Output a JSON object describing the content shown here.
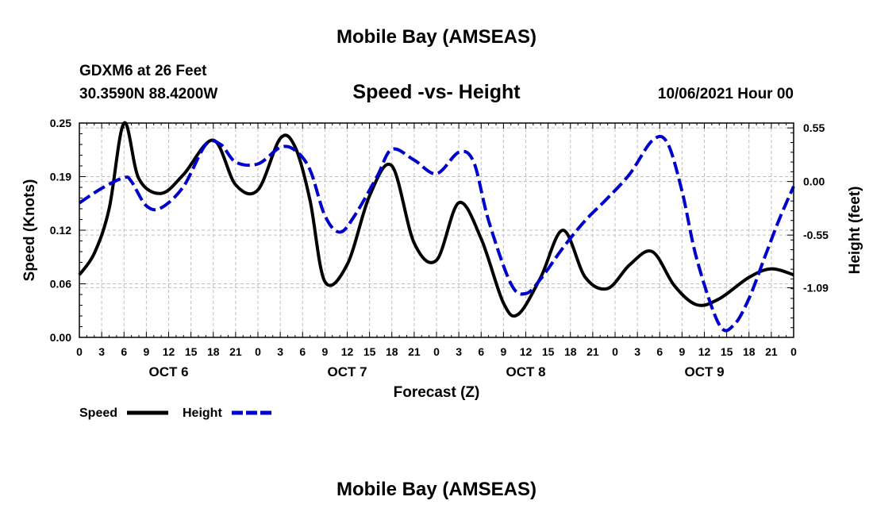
{
  "header": {
    "title_top": "Mobile Bay (AMSEAS)",
    "title_bottom": "Mobile Bay (AMSEAS)",
    "station": "GDXM6 at 26 Feet",
    "location": "30.3590N  88.4200W",
    "heading": "Speed -vs- Height",
    "datetime": "10/06/2021 Hour 00"
  },
  "chart_data": {
    "type": "line",
    "title": "Speed -vs- Height",
    "xlabel": "Forecast (Z)",
    "ylabel": "Speed (Knots)",
    "y2label": "Height (feet)",
    "xlim": [
      0,
      96
    ],
    "ylim": [
      0,
      0.25
    ],
    "y2lim": [
      -1.6,
      0.6
    ],
    "x_tick_labels": [
      "0",
      "3",
      "6",
      "9",
      "12",
      "15",
      "18",
      "21",
      "0",
      "3",
      "6",
      "9",
      "12",
      "15",
      "18",
      "21",
      "0",
      "3",
      "6",
      "9",
      "12",
      "15",
      "18",
      "21",
      "0",
      "3",
      "6",
      "9",
      "12",
      "15",
      "18",
      "21",
      "0"
    ],
    "day_labels": [
      {
        "x": 12,
        "label": "OCT 6"
      },
      {
        "x": 36,
        "label": "OCT 7"
      },
      {
        "x": 60,
        "label": "OCT 8"
      },
      {
        "x": 84,
        "label": "OCT 9"
      }
    ],
    "y_ticks": [
      {
        "value": 0.0,
        "label": "0.00"
      },
      {
        "value": 0.0625,
        "label": "0.06"
      },
      {
        "value": 0.125,
        "label": "0.12"
      },
      {
        "value": 0.1875,
        "label": "0.19"
      },
      {
        "value": 0.25,
        "label": "0.25"
      }
    ],
    "y2_ticks": [
      {
        "value": 0.55,
        "label": "0.55"
      },
      {
        "value": 0.0,
        "label": "0.00"
      },
      {
        "value": -0.55,
        "label": "-0.55"
      },
      {
        "value": -1.09,
        "label": "-1.09"
      }
    ],
    "grid": true,
    "series": [
      {
        "name": "Speed",
        "axis": "left",
        "color": "#000000",
        "dash": "solid",
        "points": [
          [
            0,
            0.073
          ],
          [
            2,
            0.098
          ],
          [
            4,
            0.15
          ],
          [
            6,
            0.25
          ],
          [
            8,
            0.185
          ],
          [
            11,
            0.168
          ],
          [
            14,
            0.19
          ],
          [
            18,
            0.23
          ],
          [
            21,
            0.178
          ],
          [
            24,
            0.172
          ],
          [
            27,
            0.232
          ],
          [
            29,
            0.222
          ],
          [
            31,
            0.16
          ],
          [
            33,
            0.065
          ],
          [
            36,
            0.085
          ],
          [
            39,
            0.165
          ],
          [
            42,
            0.2
          ],
          [
            45,
            0.11
          ],
          [
            48,
            0.09
          ],
          [
            51,
            0.157
          ],
          [
            54,
            0.115
          ],
          [
            57,
            0.04
          ],
          [
            59,
            0.027
          ],
          [
            62,
            0.07
          ],
          [
            65,
            0.125
          ],
          [
            68,
            0.07
          ],
          [
            71,
            0.057
          ],
          [
            74,
            0.085
          ],
          [
            77,
            0.1
          ],
          [
            80,
            0.06
          ],
          [
            83,
            0.038
          ],
          [
            86,
            0.045
          ],
          [
            90,
            0.07
          ],
          [
            93,
            0.08
          ],
          [
            96,
            0.073
          ]
        ]
      },
      {
        "name": "Height",
        "axis": "right",
        "color": "#0000cc",
        "dash": "dashed",
        "points": [
          [
            0,
            -0.22
          ],
          [
            3,
            -0.07
          ],
          [
            6,
            0.04
          ],
          [
            7,
            0.0
          ],
          [
            9,
            -0.25
          ],
          [
            11,
            -0.27
          ],
          [
            14,
            -0.05
          ],
          [
            17,
            0.38
          ],
          [
            19,
            0.38
          ],
          [
            21,
            0.2
          ],
          [
            24,
            0.18
          ],
          [
            27,
            0.35
          ],
          [
            29,
            0.32
          ],
          [
            31,
            0.12
          ],
          [
            33,
            -0.35
          ],
          [
            35,
            -0.52
          ],
          [
            37,
            -0.35
          ],
          [
            40,
            0.05
          ],
          [
            42,
            0.33
          ],
          [
            45,
            0.22
          ],
          [
            48,
            0.08
          ],
          [
            51,
            0.3
          ],
          [
            53,
            0.2
          ],
          [
            55,
            -0.4
          ],
          [
            58,
            -1.05
          ],
          [
            60,
            -1.15
          ],
          [
            62,
            -1.0
          ],
          [
            65,
            -0.68
          ],
          [
            68,
            -0.4
          ],
          [
            71,
            -0.17
          ],
          [
            74,
            0.08
          ],
          [
            77,
            0.42
          ],
          [
            79,
            0.4
          ],
          [
            81,
            -0.1
          ],
          [
            83,
            -0.8
          ],
          [
            86,
            -1.47
          ],
          [
            88,
            -1.47
          ],
          [
            90,
            -1.2
          ],
          [
            92,
            -0.8
          ],
          [
            94,
            -0.4
          ],
          [
            96,
            -0.05
          ]
        ]
      }
    ]
  },
  "legend": {
    "speed_label": "Speed",
    "height_label": "Height"
  }
}
